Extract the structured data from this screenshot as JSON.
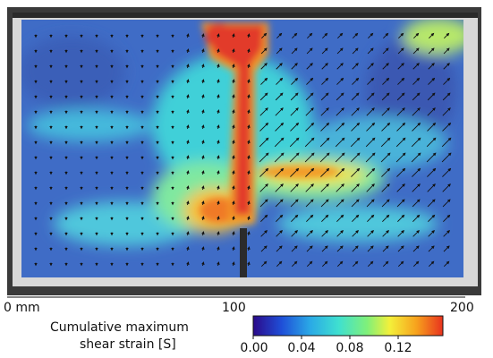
{
  "figure": {
    "description_visible_elements": [
      "strain-field-overlay",
      "displacement-vectors",
      "scale-bar",
      "colorbar"
    ]
  },
  "scale_bar": {
    "unit_label": "0 mm",
    "ticks": [
      "100",
      "200"
    ]
  },
  "colorbar": {
    "label_line1": "Cumulative maximum",
    "label_line2": "shear strain  [S]",
    "ticks": [
      "0.00",
      "0.04",
      "0.08",
      "0.12"
    ],
    "colors": [
      "#2b0a8a",
      "#1f4fd8",
      "#2aa9e6",
      "#3fe0d0",
      "#7ff07a",
      "#f4f03a",
      "#f7a21d",
      "#e8321e"
    ]
  },
  "colors": {
    "background_blue": "#3f6cc6",
    "band_cyan": "#3fd2d8",
    "band_yellow": "#f2e24a",
    "crack_red": "#e23a2a",
    "specimen_gray": "#444444"
  }
}
